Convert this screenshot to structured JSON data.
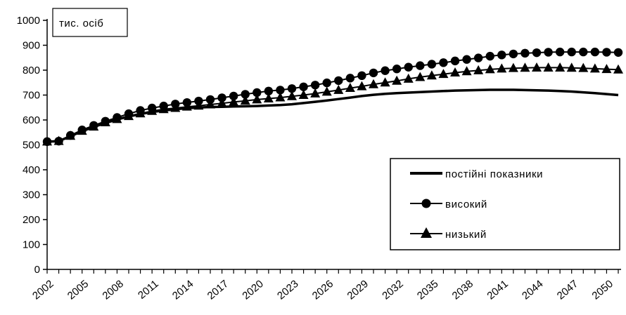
{
  "chart_data": {
    "type": "line",
    "unit_label": "тис. осіб",
    "x_tick_labels": [
      "2002",
      "2005",
      "2008",
      "2011",
      "2014",
      "2017",
      "2020",
      "2023",
      "2026",
      "2029",
      "2032",
      "2035",
      "2038",
      "2041",
      "2044",
      "2047",
      "2050"
    ],
    "x": [
      2002,
      2003,
      2004,
      2005,
      2006,
      2007,
      2008,
      2009,
      2010,
      2011,
      2012,
      2013,
      2014,
      2015,
      2016,
      2017,
      2018,
      2019,
      2020,
      2021,
      2022,
      2023,
      2024,
      2025,
      2026,
      2027,
      2028,
      2029,
      2030,
      2031,
      2032,
      2033,
      2034,
      2035,
      2036,
      2037,
      2038,
      2039,
      2040,
      2041,
      2042,
      2043,
      2044,
      2045,
      2046,
      2047,
      2048,
      2049,
      2050,
      2051
    ],
    "xlim": [
      2002,
      2051
    ],
    "ylim": [
      0,
      1000
    ],
    "y_ticks": [
      0,
      100,
      200,
      300,
      400,
      500,
      600,
      700,
      800,
      900,
      1000
    ],
    "grid": false,
    "legend_position": "right-middle",
    "series": [
      {
        "name": "постійні показники",
        "marker": "none",
        "values": [
          513,
          515,
          535,
          555,
          572,
          588,
          602,
          614,
          624,
          632,
          638,
          643,
          647,
          650,
          652,
          653,
          654,
          655,
          656,
          658,
          660,
          663,
          668,
          673,
          678,
          684,
          690,
          696,
          701,
          705,
          708,
          710,
          712,
          714,
          716,
          718,
          719,
          720,
          721,
          721,
          721,
          720,
          719,
          718,
          716,
          714,
          711,
          708,
          704,
          700
        ]
      },
      {
        "name": "високий",
        "marker": "circle",
        "values": [
          513,
          515,
          538,
          560,
          578,
          595,
          610,
          625,
          638,
          648,
          656,
          664,
          670,
          676,
          682,
          689,
          696,
          703,
          710,
          716,
          720,
          726,
          733,
          740,
          749,
          758,
          768,
          778,
          789,
          798,
          805,
          812,
          818,
          824,
          830,
          837,
          843,
          849,
          856,
          861,
          865,
          868,
          870,
          872,
          873,
          873,
          873,
          873,
          872,
          871
        ]
      },
      {
        "name": "низький",
        "marker": "triangle",
        "values": [
          513,
          515,
          536,
          556,
          573,
          590,
          603,
          615,
          626,
          636,
          643,
          648,
          653,
          657,
          662,
          667,
          672,
          677,
          682,
          686,
          690,
          695,
          700,
          706,
          713,
          720,
          728,
          735,
          743,
          750,
          757,
          765,
          772,
          778,
          784,
          790,
          795,
          799,
          803,
          806,
          808,
          809,
          810,
          810,
          810,
          809,
          808,
          806,
          804,
          802
        ]
      }
    ]
  }
}
